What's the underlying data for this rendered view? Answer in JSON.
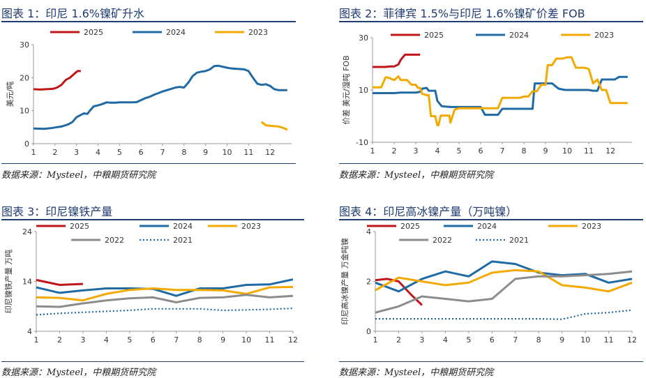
{
  "sources": {
    "text": "数据来源：Mysteel，中粮期货研究院"
  },
  "colors": {
    "y2025": "#c0161b",
    "y2024": "#1f6aa5",
    "y2023": "#f2a900",
    "y2022": "#8c8c8c",
    "y2021": "#1f6aa5",
    "accent": "#1f3b73"
  },
  "chart_data": [
    {
      "type": "line",
      "title": "图表 1：印尼 1.6%镍矿升水",
      "xlabel": "",
      "ylabel": "美元/吨",
      "xlim": [
        1,
        13
      ],
      "ylim": [
        0,
        30
      ],
      "yticks": [
        0,
        10,
        20,
        30
      ],
      "xticks": [
        1,
        2,
        3,
        4,
        5,
        6,
        7,
        8,
        9,
        10,
        11,
        12
      ],
      "legend_position": "top",
      "series": [
        {
          "name": "2025",
          "color": "y2025",
          "style": "solid",
          "x": [
            1,
            1.3,
            1.6,
            1.9,
            2.1,
            2.3,
            2.5,
            2.7,
            2.9,
            3.05,
            3.2
          ],
          "y": [
            16.5,
            16.4,
            16.5,
            16.6,
            17.0,
            17.8,
            19.3,
            20.0,
            21.2,
            22.0,
            22.0
          ]
        },
        {
          "name": "2024",
          "color": "y2024",
          "style": "solid",
          "x": [
            1,
            1.5,
            1.8,
            2.0,
            2.3,
            2.6,
            2.8,
            3.0,
            3.2,
            3.35,
            3.5,
            3.65,
            3.8,
            4.0,
            4.2,
            4.4,
            4.6,
            4.8,
            5.0,
            5.2,
            5.4,
            5.6,
            5.8,
            6.0,
            6.2,
            6.4,
            6.6,
            6.8,
            7.0,
            7.2,
            7.4,
            7.6,
            7.8,
            8.0,
            8.2,
            8.4,
            8.6,
            8.8,
            9.0,
            9.2,
            9.4,
            9.6,
            9.8,
            10.0,
            10.2,
            10.4,
            10.6,
            10.8,
            11.0,
            11.2,
            11.4,
            11.6,
            11.8,
            12.0,
            12.2,
            12.4,
            12.6,
            12.8
          ],
          "y": [
            4.6,
            4.5,
            4.7,
            4.9,
            5.2,
            5.8,
            6.5,
            8.0,
            8.7,
            9.2,
            9.0,
            10.2,
            11.3,
            11.6,
            12.0,
            12.5,
            12.4,
            12.4,
            12.5,
            12.5,
            12.5,
            12.5,
            12.6,
            13.2,
            13.8,
            14.2,
            14.8,
            15.3,
            15.8,
            16.2,
            16.6,
            17.0,
            17.2,
            17.0,
            18.5,
            20.5,
            21.5,
            21.8,
            22.0,
            22.5,
            23.5,
            23.6,
            23.3,
            23.0,
            22.8,
            22.7,
            22.6,
            22.5,
            22.0,
            20.0,
            18.2,
            17.8,
            18.0,
            17.5,
            16.5,
            16.2,
            16.2,
            16.2
          ]
        },
        {
          "name": "2023",
          "color": "y2023",
          "style": "solid",
          "x": [
            11.6,
            11.8,
            12.0,
            12.2,
            12.4,
            12.6,
            12.8
          ],
          "y": [
            6.6,
            5.6,
            5.4,
            5.3,
            5.2,
            4.8,
            4.2
          ]
        }
      ]
    },
    {
      "type": "line",
      "title": "图表 2：菲律宾 1.5%与印尼 1.6%镍矿价差 FOB",
      "xlabel": "",
      "ylabel": "价差 美元/湿吨 FOB",
      "xlim": [
        1,
        13
      ],
      "ylim": [
        -10,
        30
      ],
      "yticks": [
        -10,
        10,
        30
      ],
      "xticks": [
        1,
        2,
        3,
        4,
        5,
        6,
        7,
        8,
        9,
        10,
        11,
        12
      ],
      "legend_position": "top",
      "series": [
        {
          "name": "2025",
          "color": "y2025",
          "style": "solid",
          "x": [
            1,
            1.6,
            1.8,
            2.0,
            2.2,
            2.3,
            2.5,
            2.7,
            2.9,
            3.2
          ],
          "y": [
            18.8,
            18.8,
            19.0,
            19.0,
            19.8,
            21.5,
            23.5,
            23.5,
            23.5,
            23.5
          ]
        },
        {
          "name": "2024",
          "color": "y2024",
          "style": "solid",
          "x": [
            1,
            2.0,
            2.3,
            2.4,
            3.0,
            3.2,
            3.3,
            3.5,
            3.6,
            3.9,
            4.0,
            4.2,
            4.6,
            5.0,
            5.4,
            5.6,
            5.8,
            6.0,
            6.2,
            6.4,
            6.6,
            6.8,
            7.0,
            7.2,
            7.8,
            8.4,
            8.5,
            9.0,
            9.3,
            9.6,
            9.9,
            10.0,
            10.1,
            10.4,
            10.8,
            11.0,
            11.2,
            11.4,
            11.6,
            11.8,
            12.0,
            12.2,
            12.4,
            12.8
          ],
          "y": [
            8.8,
            8.8,
            9.0,
            9.0,
            9.0,
            9.3,
            10.5,
            10.8,
            9.7,
            9.7,
            5.8,
            3.8,
            3.5,
            3.5,
            3.5,
            3.5,
            3.5,
            3.5,
            0.5,
            0.5,
            0.5,
            0.5,
            2.8,
            2.8,
            2.8,
            2.8,
            12.5,
            12.5,
            12.5,
            10.5,
            10.0,
            10.0,
            10.0,
            10.0,
            10.0,
            10.0,
            9.7,
            9.7,
            14.0,
            14.0,
            14.0,
            14.0,
            15.0,
            15.0
          ]
        },
        {
          "name": "2023",
          "color": "y2023",
          "style": "solid",
          "x": [
            1,
            1.4,
            1.6,
            1.7,
            2.0,
            2.2,
            2.3,
            2.6,
            2.8,
            3.0,
            3.1,
            3.2,
            3.3,
            3.4,
            3.5,
            3.6,
            3.7,
            3.8,
            3.9,
            4.0,
            4.05,
            4.15,
            4.4,
            4.55,
            4.6,
            4.8,
            5.0,
            5.4,
            5.8,
            6.0,
            6.4,
            6.8,
            7.0,
            7.2,
            7.6,
            7.8,
            8.0,
            8.2,
            8.4,
            8.6,
            8.8,
            9.0,
            9.1,
            9.3,
            9.5,
            9.6,
            9.8,
            10.0,
            10.2,
            10.4,
            10.8,
            11.0,
            11.2,
            11.4,
            11.6,
            11.8,
            12.0,
            12.2,
            12.4,
            12.8
          ],
          "y": [
            11.0,
            11.0,
            14.8,
            14.8,
            13.8,
            15.2,
            13.8,
            13.8,
            12.0,
            12.0,
            10.8,
            10.8,
            8.5,
            8.3,
            8.0,
            8.0,
            0.0,
            0.0,
            0.0,
            -3.5,
            -3.5,
            0.2,
            0.2,
            0.2,
            -2.5,
            2.5,
            3.0,
            3.0,
            3.0,
            3.0,
            3.0,
            3.0,
            7.0,
            7.0,
            7.0,
            7.0,
            7.5,
            7.5,
            9.5,
            9.5,
            12.0,
            12.0,
            19.5,
            19.5,
            22.0,
            22.0,
            22.0,
            22.5,
            22.5,
            18.5,
            18.5,
            18.0,
            12.5,
            14.0,
            10.0,
            10.0,
            5.0,
            5.0,
            5.0,
            5.0
          ]
        }
      ]
    },
    {
      "type": "line",
      "title": "图表 3：印尼镍铁产量",
      "xlabel": "",
      "ylabel": "印尼镍铁产量 万吨",
      "xlim": [
        1,
        12
      ],
      "ylim": [
        4,
        24
      ],
      "yticks": [
        4,
        14,
        24
      ],
      "xticks": [
        1,
        2,
        3,
        4,
        5,
        6,
        7,
        8,
        9,
        10,
        11,
        12
      ],
      "legend_position": "top",
      "series": [
        {
          "name": "2025",
          "color": "y2025",
          "style": "solid",
          "x": [
            1,
            2,
            3
          ],
          "y": [
            14.3,
            13.3,
            13.5
          ]
        },
        {
          "name": "2024",
          "color": "y2024",
          "style": "solid",
          "x": [
            1,
            2,
            3,
            4,
            5,
            6,
            7,
            8,
            9,
            10,
            11,
            12
          ],
          "y": [
            12.8,
            11.7,
            12.2,
            12.6,
            12.6,
            12.5,
            11.1,
            12.6,
            12.6,
            13.3,
            13.4,
            14.4
          ]
        },
        {
          "name": "2023",
          "color": "y2023",
          "style": "solid",
          "x": [
            1,
            2,
            3,
            4,
            5,
            6,
            7,
            8,
            9,
            10,
            11,
            12
          ],
          "y": [
            10.8,
            10.7,
            10.2,
            11.5,
            12.3,
            12.6,
            12.3,
            12.3,
            12.2,
            11.5,
            12.8,
            12.9
          ]
        },
        {
          "name": "2022",
          "color": "y2022",
          "style": "solid",
          "x": [
            1,
            2,
            3,
            4,
            5,
            6,
            7,
            8,
            9,
            10,
            11,
            12
          ],
          "y": [
            9.0,
            8.9,
            9.6,
            10.2,
            10.6,
            10.8,
            9.8,
            10.7,
            10.8,
            11.3,
            10.8,
            11.1
          ]
        },
        {
          "name": "2021",
          "color": "y2021",
          "style": "dotted",
          "x": [
            1,
            2,
            3,
            4,
            5,
            6,
            7,
            8,
            9,
            10,
            11,
            12
          ],
          "y": [
            7.3,
            7.6,
            7.8,
            8.0,
            8.2,
            8.5,
            8.5,
            8.5,
            8.2,
            8.3,
            8.4,
            8.6
          ]
        }
      ]
    },
    {
      "type": "line",
      "title": "图表 4：印尼高冰镍产量（万吨镍）",
      "xlabel": "",
      "ylabel": "印尼高冰镍产量 万金吨镍",
      "xlim": [
        1,
        12
      ],
      "ylim": [
        0,
        4
      ],
      "yticks": [
        0,
        2,
        4
      ],
      "xticks": [
        1,
        2,
        3,
        4,
        5,
        6,
        7,
        8,
        9,
        10,
        11,
        12
      ],
      "legend_position": "top",
      "series": [
        {
          "name": "2025",
          "color": "y2025",
          "style": "solid",
          "x": [
            1,
            1.5,
            2,
            2.5,
            3
          ],
          "y": [
            2.05,
            2.1,
            2.0,
            1.5,
            1.05
          ]
        },
        {
          "name": "2024",
          "color": "y2024",
          "style": "solid",
          "x": [
            1,
            2,
            3,
            4,
            5,
            6,
            7,
            8,
            9,
            10,
            11,
            12
          ],
          "y": [
            1.95,
            1.6,
            2.1,
            2.4,
            2.2,
            2.8,
            2.7,
            2.35,
            2.25,
            2.3,
            1.95,
            2.1
          ]
        },
        {
          "name": "2023",
          "color": "y2023",
          "style": "solid",
          "x": [
            1,
            2,
            3,
            4,
            5,
            6,
            7,
            8,
            9,
            10,
            11,
            12
          ],
          "y": [
            1.65,
            2.15,
            2.0,
            1.85,
            1.95,
            2.35,
            2.45,
            2.4,
            1.85,
            1.75,
            1.6,
            1.95
          ]
        },
        {
          "name": "2022",
          "color": "y2022",
          "style": "solid",
          "x": [
            1,
            2,
            3,
            4,
            5,
            6,
            7,
            8,
            9,
            10,
            11,
            12
          ],
          "y": [
            0.75,
            1.0,
            1.4,
            1.3,
            1.2,
            1.3,
            2.1,
            2.2,
            2.2,
            2.25,
            2.3,
            2.4
          ]
        },
        {
          "name": "2021",
          "color": "y2021",
          "style": "dotted",
          "x": [
            1,
            2,
            3,
            4,
            5,
            6,
            7,
            8,
            9,
            10,
            11,
            12
          ],
          "y": [
            0.5,
            0.5,
            0.5,
            0.5,
            0.5,
            0.5,
            0.5,
            0.5,
            0.48,
            0.7,
            0.75,
            0.85
          ]
        }
      ]
    }
  ]
}
